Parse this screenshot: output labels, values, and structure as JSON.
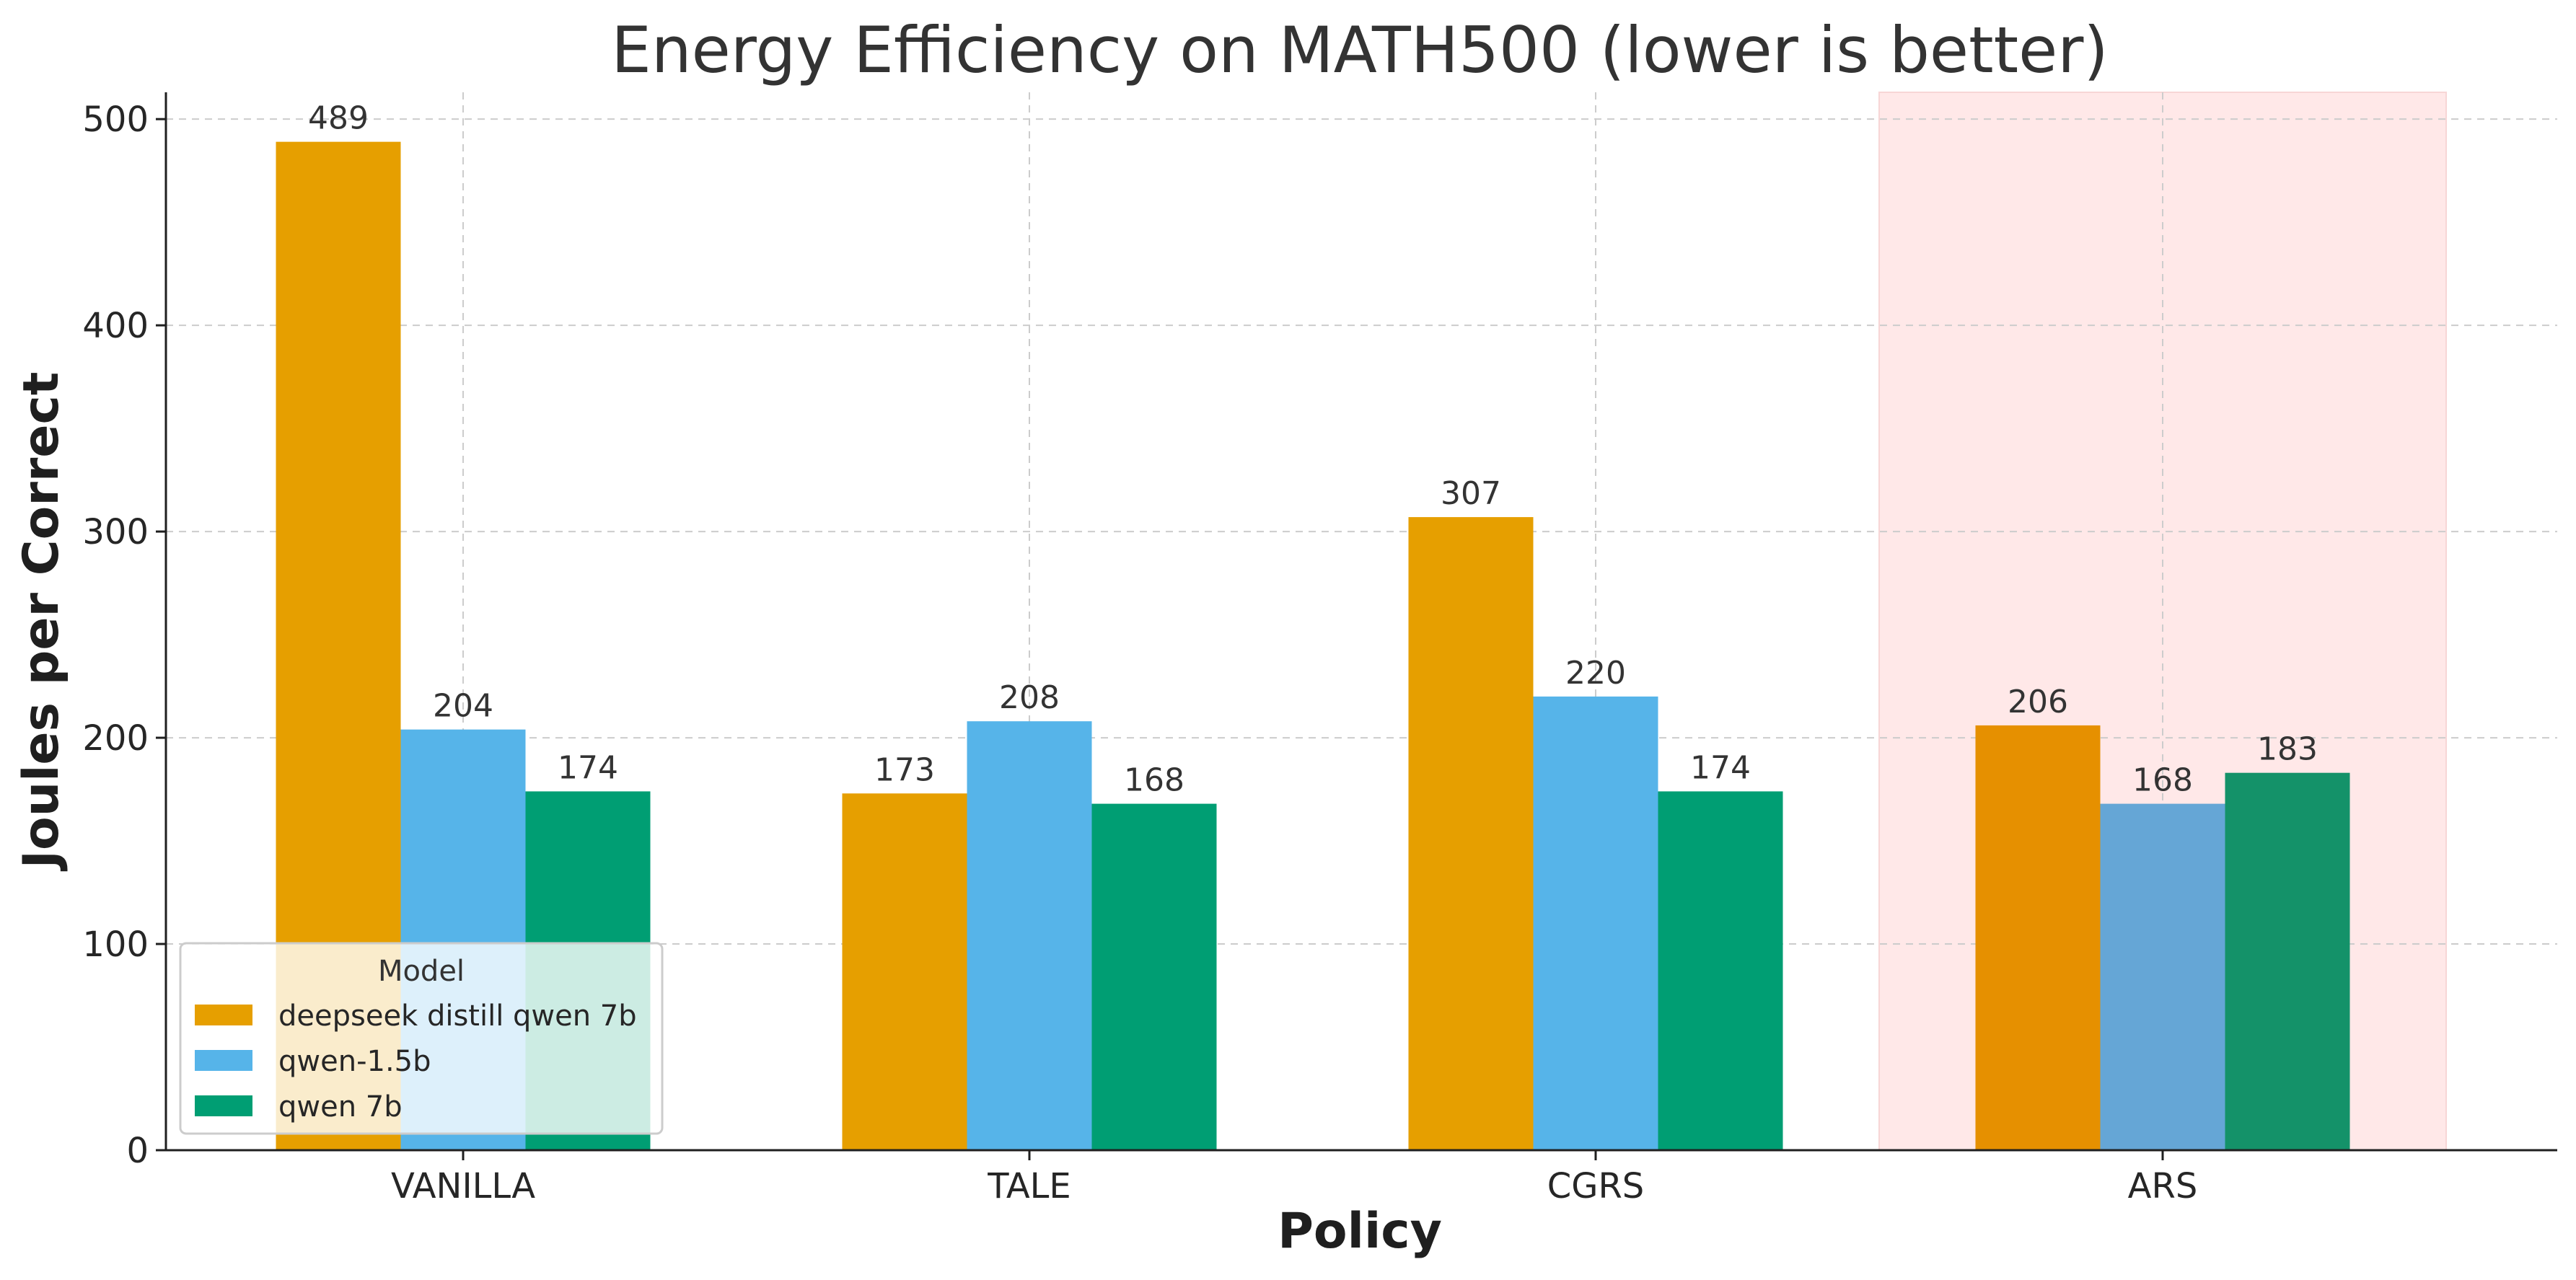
{
  "chart_data": {
    "type": "bar",
    "title": "Energy Efficiency on MATH500 (lower is better)",
    "xlabel": "Policy",
    "ylabel": "Joules per Correct",
    "categories": [
      "VANILLA",
      "TALE",
      "CGRS",
      "ARS"
    ],
    "series": [
      {
        "name": "deepseek distill qwen 7b",
        "values": [
          489,
          173,
          307,
          206
        ],
        "color": "#E69F00"
      },
      {
        "name": "qwen-1.5b",
        "values": [
          204,
          208,
          220,
          168
        ],
        "color": "#56B4E9"
      },
      {
        "name": "qwen 7b",
        "values": [
          174,
          168,
          174,
          183
        ],
        "color": "#009E73"
      }
    ],
    "highlight_category": "ARS",
    "highlight_color": "#ffe8e8",
    "highlight_series_colors": [
      "#E69000",
      "#65A6D6",
      "#149269"
    ],
    "ylim": [
      0,
      513
    ],
    "yticks": [
      0,
      100,
      200,
      300,
      400,
      500
    ],
    "grid": true,
    "legend": {
      "title": "Model",
      "placement": "lower-left"
    }
  }
}
